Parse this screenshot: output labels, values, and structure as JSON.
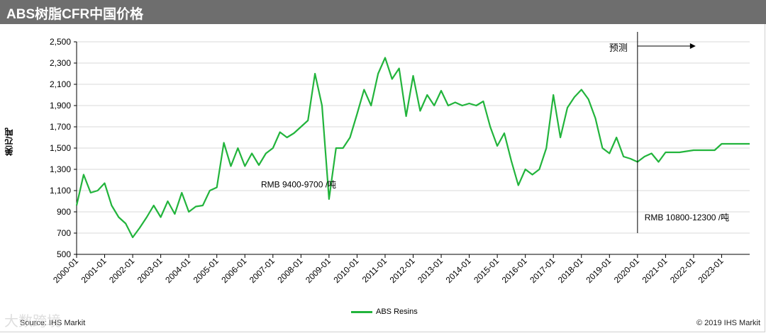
{
  "header": {
    "title": "ABS树脂CFR中国价格"
  },
  "footer": {
    "source": "Source: IHS Markit",
    "copyright": "© 2019 IHS Markit",
    "watermark": "大数跨境"
  },
  "colors": {
    "series": "#22b43c",
    "title_bar": "#6e6e6e",
    "grid": "#d9d9d9",
    "axis": "#000000"
  },
  "chart_data": {
    "type": "line",
    "title": "ABS树脂CFR中国价格",
    "xlabel": "",
    "ylabel": "美元/吨",
    "ylim": [
      500,
      2500
    ],
    "yticks": [
      500,
      700,
      900,
      1100,
      1300,
      1500,
      1700,
      1900,
      2100,
      2300,
      2500
    ],
    "ytick_labels": [
      "500",
      "700",
      "900",
      "1,100",
      "1,300",
      "1,500",
      "1,700",
      "1,900",
      "2,100",
      "2,300",
      "2,500"
    ],
    "xlim": [
      "2000-01",
      "2024-01"
    ],
    "xtick_labels": [
      "2000-01",
      "2001-01",
      "2002-01",
      "2003-01",
      "2004-01",
      "2005-01",
      "2006-01",
      "2007-01",
      "2008-01",
      "2009-01",
      "2010-01",
      "2011-01",
      "2012-01",
      "2013-01",
      "2014-01",
      "2015-01",
      "2016-01",
      "2017-01",
      "2018-01",
      "2019-01",
      "2020-01",
      "2021-01",
      "2022-01",
      "2023-01"
    ],
    "grid": "horizontal",
    "legend": "bottom-center",
    "series": [
      {
        "name": "ABS Resins",
        "x": [
          "2000-01",
          "2000-04",
          "2000-07",
          "2000-10",
          "2001-01",
          "2001-04",
          "2001-07",
          "2001-10",
          "2002-01",
          "2002-04",
          "2002-07",
          "2002-10",
          "2003-01",
          "2003-04",
          "2003-07",
          "2003-10",
          "2004-01",
          "2004-04",
          "2004-07",
          "2004-10",
          "2005-01",
          "2005-04",
          "2005-07",
          "2005-10",
          "2006-01",
          "2006-04",
          "2006-07",
          "2006-10",
          "2007-01",
          "2007-04",
          "2007-07",
          "2007-10",
          "2008-01",
          "2008-04",
          "2008-07",
          "2008-10",
          "2009-01",
          "2009-04",
          "2009-07",
          "2009-10",
          "2010-01",
          "2010-04",
          "2010-07",
          "2010-10",
          "2011-01",
          "2011-04",
          "2011-07",
          "2011-10",
          "2012-01",
          "2012-04",
          "2012-07",
          "2012-10",
          "2013-01",
          "2013-04",
          "2013-07",
          "2013-10",
          "2014-01",
          "2014-04",
          "2014-07",
          "2014-10",
          "2015-01",
          "2015-04",
          "2015-07",
          "2015-10",
          "2016-01",
          "2016-04",
          "2016-07",
          "2016-10",
          "2017-01",
          "2017-04",
          "2017-07",
          "2017-10",
          "2018-01",
          "2018-04",
          "2018-07",
          "2018-10",
          "2019-01",
          "2019-04",
          "2019-07",
          "2019-10",
          "2020-01",
          "2020-04",
          "2020-07",
          "2020-10",
          "2021-01",
          "2021-04",
          "2021-07",
          "2021-10",
          "2022-01",
          "2022-04",
          "2022-07",
          "2022-10",
          "2023-01",
          "2023-04",
          "2023-07",
          "2023-10",
          "2024-01"
        ],
        "values": [
          960,
          1250,
          1080,
          1100,
          1170,
          960,
          850,
          790,
          660,
          750,
          850,
          960,
          850,
          1000,
          880,
          1080,
          900,
          950,
          960,
          1100,
          1130,
          1550,
          1330,
          1500,
          1330,
          1450,
          1340,
          1450,
          1500,
          1650,
          1600,
          1640,
          1700,
          1760,
          2200,
          1900,
          1020,
          1500,
          1500,
          1600,
          1820,
          2050,
          1900,
          2200,
          2350,
          2150,
          2250,
          1800,
          2180,
          1850,
          2000,
          1900,
          2040,
          1900,
          1930,
          1900,
          1920,
          1900,
          1940,
          1700,
          1520,
          1640,
          1380,
          1150,
          1300,
          1250,
          1300,
          1500,
          2000,
          1600,
          1880,
          1980,
          2050,
          1960,
          1780,
          1500,
          1450,
          1600,
          1420,
          1400,
          1370,
          1420,
          1450,
          1370,
          1460,
          1460,
          1460,
          1470,
          1480,
          1480,
          1480,
          1480,
          1540,
          1540,
          1540,
          1540,
          1540
        ]
      }
    ],
    "annotations": [
      {
        "text": "预测",
        "at_x": "2020-01"
      },
      {
        "text": "RMB 9400-9700 /吨",
        "at_x": "2007-12",
        "at_y": 850
      },
      {
        "text": "RMB 10800-12300 /吨",
        "at_x": "2020-04",
        "at_y": 1200
      }
    ],
    "forecast_start": "2020-01"
  }
}
